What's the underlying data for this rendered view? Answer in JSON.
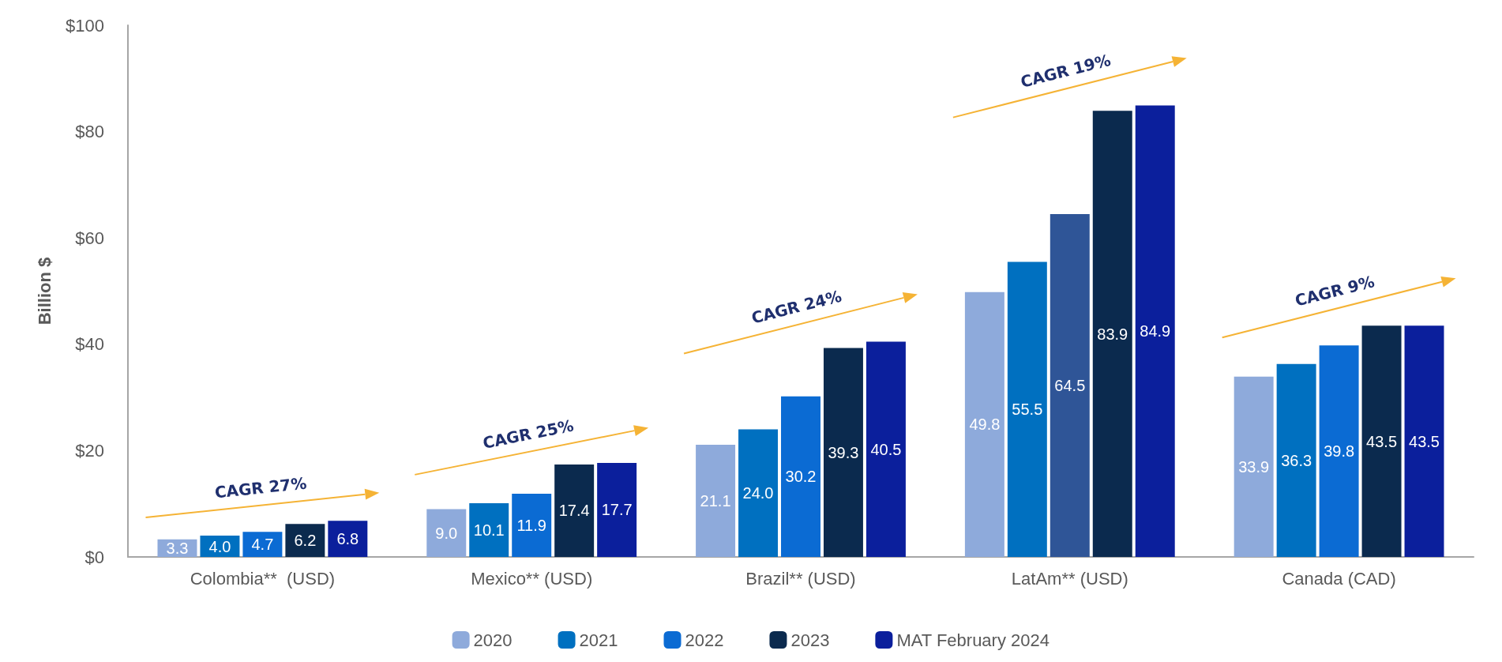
{
  "chart_data": {
    "type": "bar",
    "ylabel": "Billion $",
    "categories": [
      "Colombia**  (USD)",
      "Mexico** (USD)",
      "Brazil** (USD)",
      "LatAm** (USD)",
      "Canada (CAD)"
    ],
    "series": [
      {
        "name": "2020",
        "color": "#8eaadb",
        "values": [
          3.3,
          9.0,
          21.1,
          49.8,
          33.9
        ],
        "value_labels": [
          "3.3",
          "9.0",
          "21.1",
          "49.8",
          "33.9"
        ]
      },
      {
        "name": "2021",
        "color": "#0070c0",
        "values": [
          4.0,
          10.1,
          24.0,
          55.5,
          36.3
        ],
        "value_labels": [
          "4.0",
          "10.1",
          "24.0",
          "55.5",
          "36.3"
        ]
      },
      {
        "name": "2022",
        "color": "#0b6bd3",
        "colors": [
          "#0b6bd3",
          "#0b6bd3",
          "#0b6bd3",
          "#2f5597",
          "#0b6bd3"
        ],
        "values": [
          4.7,
          11.9,
          30.2,
          64.5,
          39.8
        ],
        "value_labels": [
          "4.7",
          "11.9",
          "30.2",
          "64.5",
          "39.8"
        ]
      },
      {
        "name": "2023",
        "color": "#0b2a4e",
        "values": [
          6.2,
          17.4,
          39.3,
          83.9,
          43.5
        ],
        "value_labels": [
          "6.2",
          "17.4",
          "39.3",
          "83.9",
          "43.5"
        ]
      },
      {
        "name": "MAT February 2024",
        "color": "#0b1f9c",
        "values": [
          6.8,
          17.7,
          40.5,
          84.9,
          43.5
        ],
        "value_labels": [
          "6.8",
          "17.7",
          "40.5",
          "84.9",
          "43.5"
        ]
      }
    ],
    "ylim": [
      0,
      100
    ],
    "yticks": [
      {
        "value": 0,
        "label": "$0"
      },
      {
        "value": 20,
        "label": "$20"
      },
      {
        "value": 40,
        "label": "$40"
      },
      {
        "value": 60,
        "label": "$60"
      },
      {
        "value": 80,
        "label": "$80"
      },
      {
        "value": 100,
        "label": "$100"
      }
    ],
    "grid": false,
    "legend": "bottom",
    "annotations": [
      "CAGR 27%",
      "CAGR 25%",
      "CAGR 24%",
      "CAGR 19%",
      "CAGR 9%"
    ]
  }
}
